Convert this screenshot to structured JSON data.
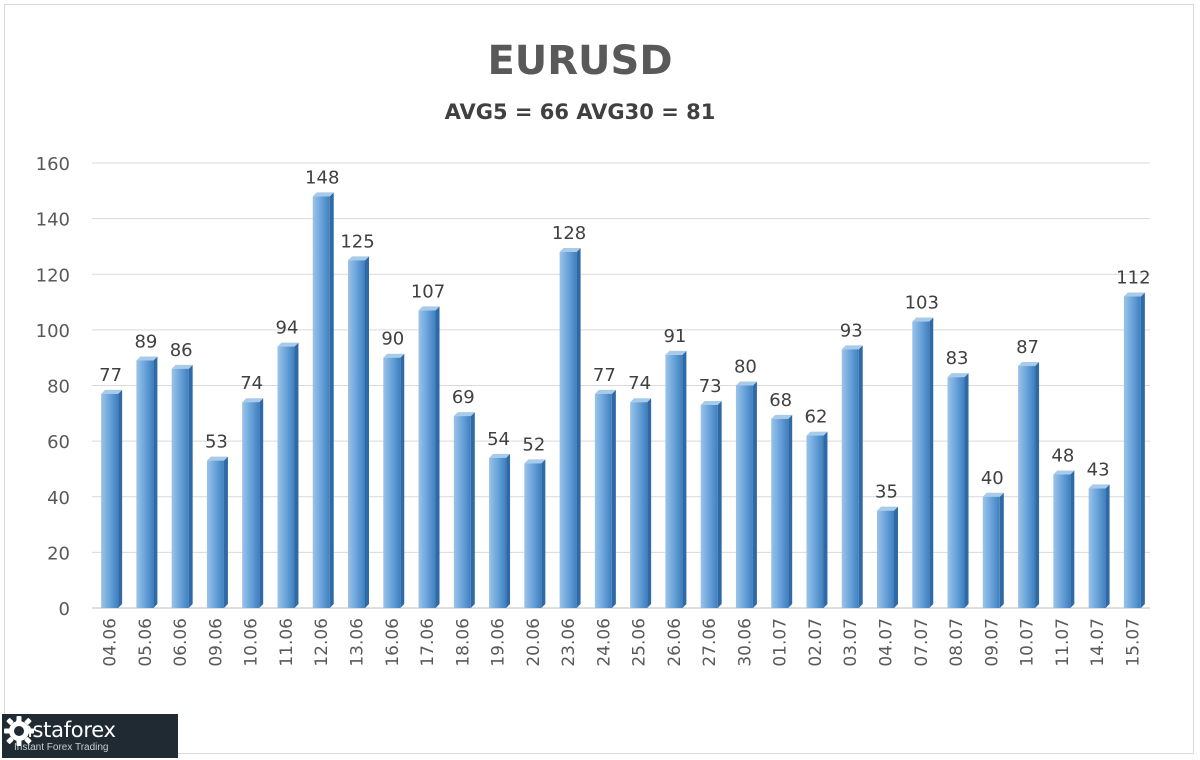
{
  "chart_data": {
    "type": "bar",
    "title": "EURUSD",
    "subtitle": "AVG5 = 66 AVG30 = 81",
    "categories": [
      "04.06",
      "05.06",
      "06.06",
      "09.06",
      "10.06",
      "11.06",
      "12.06",
      "13.06",
      "16.06",
      "17.06",
      "18.06",
      "19.06",
      "20.06",
      "23.06",
      "24.06",
      "25.06",
      "26.06",
      "27.06",
      "30.06",
      "01.07",
      "02.07",
      "03.07",
      "04.07",
      "07.07",
      "08.07",
      "09.07",
      "10.07",
      "11.07",
      "14.07",
      "15.07"
    ],
    "values": [
      77,
      89,
      86,
      53,
      74,
      94,
      148,
      125,
      90,
      107,
      69,
      54,
      52,
      128,
      77,
      74,
      91,
      73,
      80,
      68,
      62,
      93,
      35,
      103,
      83,
      40,
      87,
      48,
      43,
      112
    ],
    "ylim": [
      0,
      160
    ],
    "yticks": [
      0,
      20,
      40,
      60,
      80,
      100,
      120,
      140,
      160
    ],
    "grid": true,
    "legend": "none",
    "xlabel": "",
    "ylabel": "",
    "bar_color": "#5b9bd5"
  },
  "logo": {
    "name": "instaforex",
    "tagline": "Instant Forex Trading"
  }
}
